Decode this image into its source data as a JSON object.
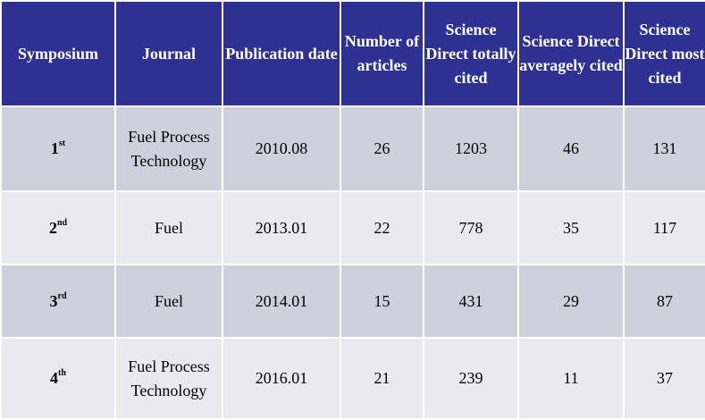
{
  "columns": [
    "Symposium",
    "Journal",
    "Publication date",
    "Number of articles",
    "Science Direct totally cited",
    "Science Direct averagely cited",
    "Science Direct most cited"
  ],
  "rows": [
    {
      "num": "1",
      "suffix": "st",
      "journal": "Fuel Process Technology",
      "date": "2010.08",
      "articles": "26",
      "total": "1203",
      "average": "46",
      "most": "131"
    },
    {
      "num": "2",
      "suffix": "nd",
      "journal": "Fuel",
      "date": "2013.01",
      "articles": "22",
      "total": "778",
      "average": "35",
      "most": "117"
    },
    {
      "num": "3",
      "suffix": "rd",
      "journal": "Fuel",
      "date": "2014.01",
      "articles": "15",
      "total": "431",
      "average": "29",
      "most": "87"
    },
    {
      "num": "4",
      "suffix": "th",
      "journal": "Fuel Process Technology",
      "date": "2016.01",
      "articles": "21",
      "total": "239",
      "average": "11",
      "most": "37"
    }
  ],
  "colors": {
    "header_bg": "#2e3192",
    "row_dark": "#d0d0dc",
    "row_light": "#e9e9ef"
  }
}
